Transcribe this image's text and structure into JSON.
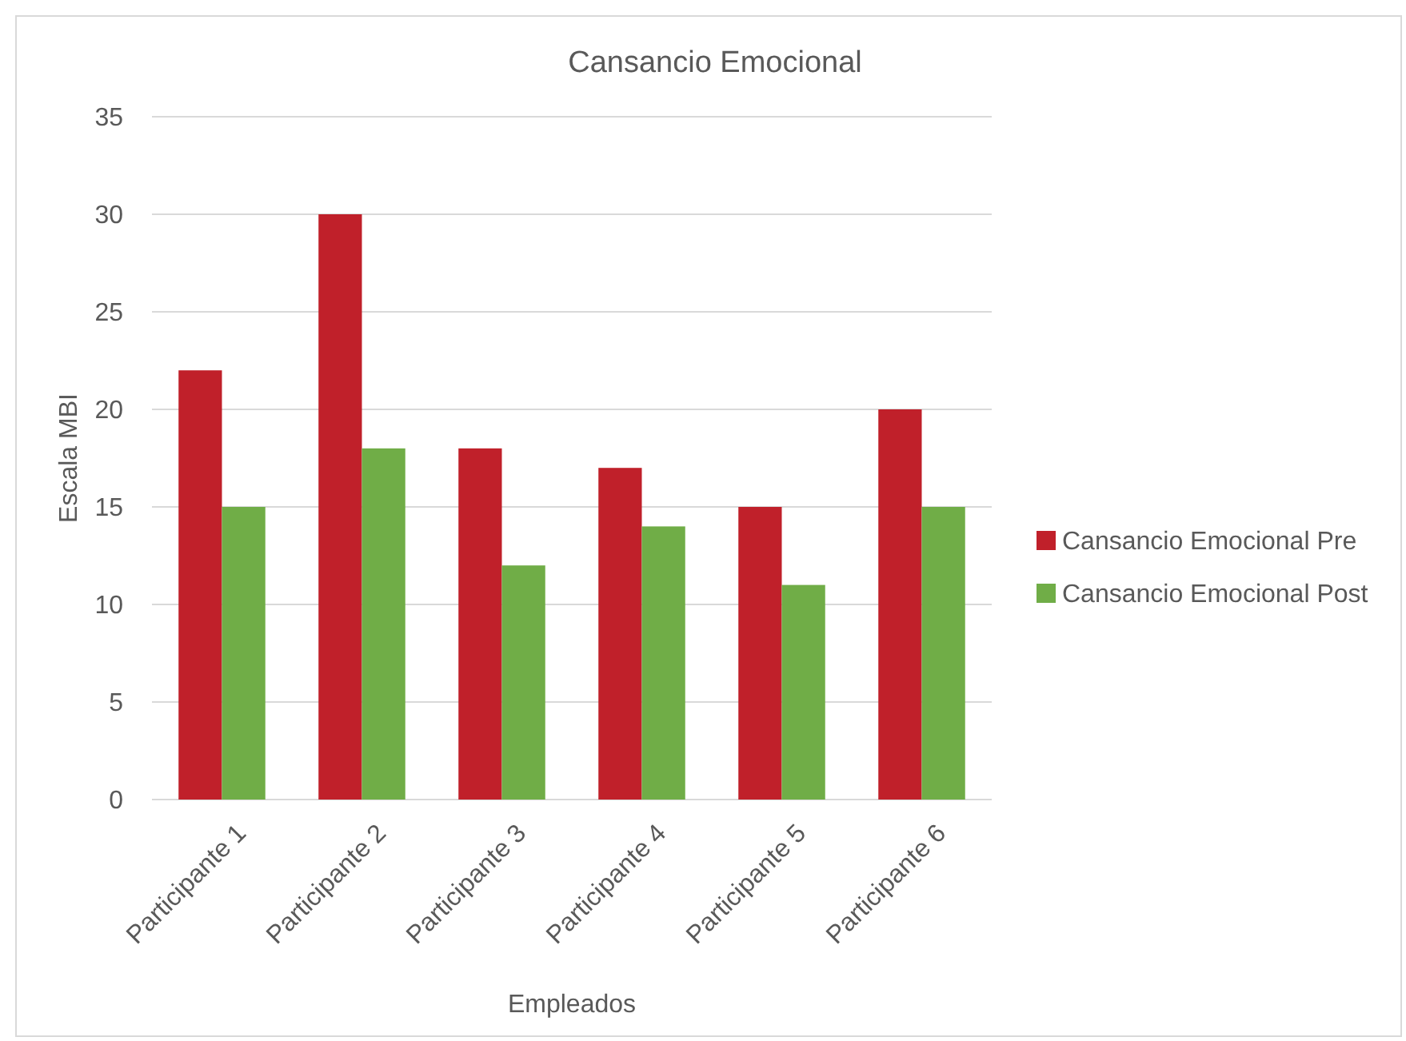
{
  "chart_data": {
    "type": "bar",
    "title": "Cansancio Emocional",
    "xlabel": "Empleados",
    "ylabel": "Escala MBI",
    "categories": [
      "Participante 1",
      "Participante 2",
      "Participante 3",
      "Participante 4",
      "Participante 5",
      "Participante 6"
    ],
    "series": [
      {
        "name": "Cansancio Emocional Pre",
        "color": "#c0202a",
        "values": [
          22,
          30,
          18,
          17,
          15,
          20
        ]
      },
      {
        "name": "Cansancio Emocional Post",
        "color": "#70ad47",
        "values": [
          15,
          18,
          12,
          14,
          11,
          15
        ]
      }
    ],
    "ylim": [
      0,
      35
    ],
    "yticks": [
      0,
      5,
      10,
      15,
      20,
      25,
      30,
      35
    ],
    "grid": "y",
    "legend": "right"
  }
}
